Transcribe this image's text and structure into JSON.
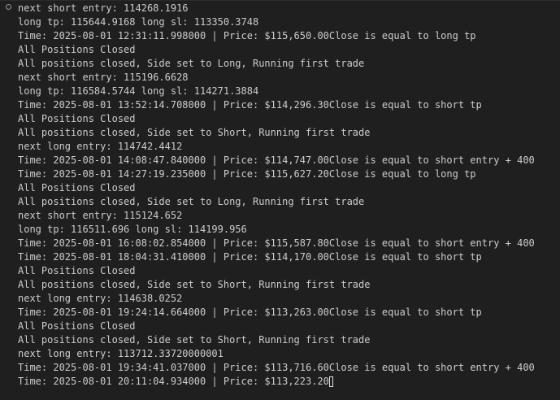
{
  "terminal": {
    "lines": [
      "next short entry: 114268.1916",
      "long tp: 115644.9168 long sl: 113350.3748",
      "Time: 2025-08-01 12:31:11.998000 | Price: $115,650.00Close is equal to long tp",
      "All Positions Closed",
      "All positions closed, Side set to Long, Running first trade",
      "next short entry: 115196.6628",
      "long tp: 116584.5744 long sl: 114271.3884",
      "Time: 2025-08-01 13:52:14.708000 | Price: $114,296.30Close is equal to short tp",
      "All Positions Closed",
      "All positions closed, Side set to Short, Running first trade",
      "next long entry: 114742.4412",
      "Time: 2025-08-01 14:08:47.840000 | Price: $114,747.00Close is equal to short entry + 400",
      "Time: 2025-08-01 14:27:19.235000 | Price: $115,627.20Close is equal to long tp",
      "All Positions Closed",
      "All positions closed, Side set to Long, Running first trade",
      "next short entry: 115124.652",
      "long tp: 116511.696 long sl: 114199.956",
      "Time: 2025-08-01 16:08:02.854000 | Price: $115,587.80Close is equal to short entry + 400",
      "Time: 2025-08-01 18:04:31.410000 | Price: $114,170.00Close is equal to short tp",
      "All Positions Closed",
      "All positions closed, Side set to Short, Running first trade",
      "next long entry: 114638.0252",
      "Time: 2025-08-01 19:24:14.664000 | Price: $113,263.00Close is equal to short tp",
      "All Positions Closed",
      "All positions closed, Side set to Short, Running first trade",
      "next long entry: 113712.33720000001",
      "Time: 2025-08-01 19:34:41.037000 | Price: $113,716.60Close is equal to short entry + 400",
      "Time: 2025-08-01 20:11:04.934000 | Price: $113,223.20"
    ]
  },
  "colors": {
    "background": "#1f1f1f",
    "text": "#cccccc",
    "cursor": "#e0e0e0"
  }
}
